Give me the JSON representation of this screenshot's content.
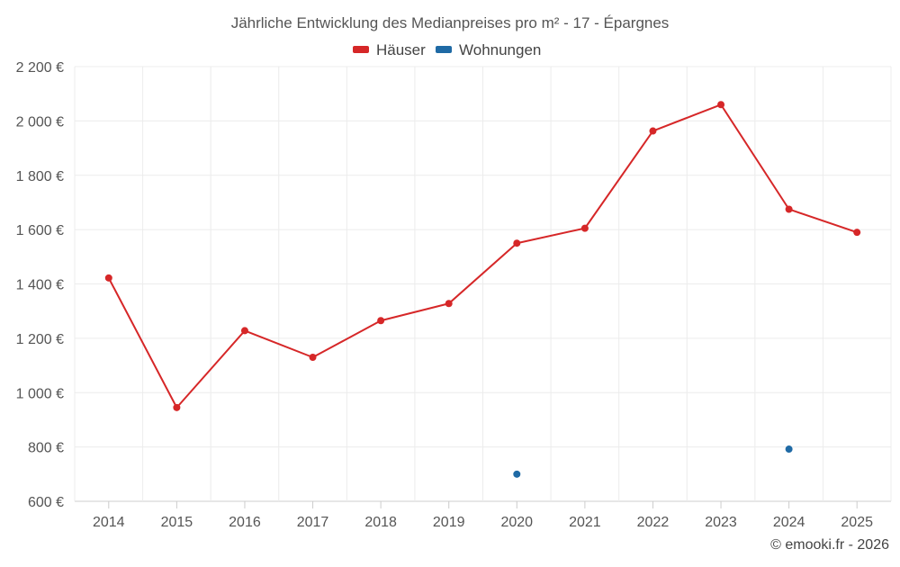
{
  "chart_data": {
    "type": "line",
    "title": "Jährliche Entwicklung des Medianpreises pro m² - 17 - Épargnes",
    "xlabel": "",
    "ylabel": "",
    "categories": [
      "2014",
      "2015",
      "2016",
      "2017",
      "2018",
      "2019",
      "2020",
      "2021",
      "2022",
      "2023",
      "2024",
      "2025"
    ],
    "ylim": [
      600,
      2200
    ],
    "yticks": [
      600,
      800,
      1000,
      1200,
      1400,
      1600,
      1800,
      2000,
      2200
    ],
    "ytick_labels": [
      "600 €",
      "800 €",
      "1 000 €",
      "1 200 €",
      "1 400 €",
      "1 600 €",
      "1 800 €",
      "2 000 €",
      "2 200 €"
    ],
    "grid": true,
    "legend_position": "top-center",
    "series": [
      {
        "name": "Häuser",
        "color": "#d62728",
        "values": [
          1422,
          945,
          1228,
          1130,
          1265,
          1328,
          1550,
          1605,
          1963,
          2060,
          1675,
          1590
        ]
      },
      {
        "name": "Wohnungen",
        "color": "#1f6aa5",
        "values": [
          null,
          null,
          null,
          null,
          null,
          null,
          700,
          null,
          null,
          null,
          792,
          null
        ]
      }
    ],
    "credit": "© emooki.fr - 2026"
  }
}
